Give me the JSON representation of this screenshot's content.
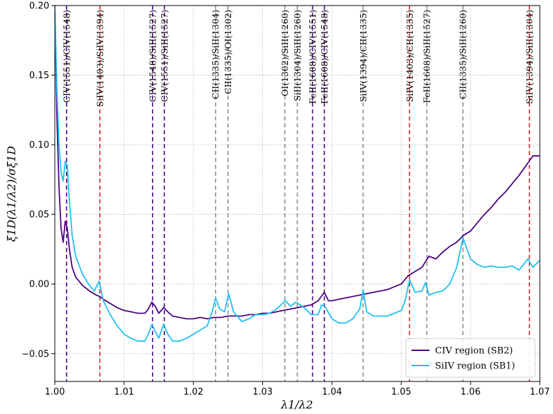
{
  "chart_data": {
    "type": "line",
    "xlabel": "λ1/λ2",
    "ylabel": "ξ1D(λ1/λ2)/σξ1D",
    "xlim": [
      1.0,
      1.07
    ],
    "ylim": [
      -0.07,
      0.2
    ],
    "x_ticks": [
      1.0,
      1.01,
      1.02,
      1.03,
      1.04,
      1.05,
      1.06,
      1.07
    ],
    "x_tick_labels": [
      "1.00",
      "1.01",
      "1.02",
      "1.03",
      "1.04",
      "1.05",
      "1.06",
      "1.07"
    ],
    "y_ticks": [
      -0.05,
      0.0,
      0.05,
      0.1,
      0.15,
      0.2
    ],
    "y_tick_labels": [
      "−0.05",
      "0.00",
      "0.05",
      "0.10",
      "0.15",
      "0.20"
    ],
    "grid": true,
    "legend_position": "bottom-right",
    "series": [
      {
        "name": "CIV region (SB2)",
        "color": "#4b0082",
        "points": [
          [
            1.0,
            0.2
          ],
          [
            1.0003,
            0.12
          ],
          [
            1.0006,
            0.07
          ],
          [
            1.0009,
            0.04
          ],
          [
            1.0012,
            0.03
          ],
          [
            1.0015,
            0.045
          ],
          [
            1.0018,
            0.04
          ],
          [
            1.0021,
            0.025
          ],
          [
            1.0025,
            0.012
          ],
          [
            1.003,
            0.005
          ],
          [
            1.004,
            -0.001
          ],
          [
            1.005,
            -0.005
          ],
          [
            1.006,
            -0.008
          ],
          [
            1.0065,
            -0.009
          ],
          [
            1.007,
            -0.011
          ],
          [
            1.008,
            -0.014
          ],
          [
            1.009,
            -0.017
          ],
          [
            1.01,
            -0.019
          ],
          [
            1.011,
            -0.02
          ],
          [
            1.012,
            -0.021
          ],
          [
            1.013,
            -0.021
          ],
          [
            1.0135,
            -0.018
          ],
          [
            1.014,
            -0.013
          ],
          [
            1.0145,
            -0.016
          ],
          [
            1.015,
            -0.021
          ],
          [
            1.0157,
            -0.017
          ],
          [
            1.0163,
            -0.02
          ],
          [
            1.017,
            -0.023
          ],
          [
            1.018,
            -0.024
          ],
          [
            1.019,
            -0.025
          ],
          [
            1.02,
            -0.025
          ],
          [
            1.021,
            -0.024
          ],
          [
            1.022,
            -0.025
          ],
          [
            1.023,
            -0.024
          ],
          [
            1.024,
            -0.024
          ],
          [
            1.025,
            -0.023
          ],
          [
            1.026,
            -0.023
          ],
          [
            1.027,
            -0.023
          ],
          [
            1.028,
            -0.022
          ],
          [
            1.029,
            -0.022
          ],
          [
            1.03,
            -0.021
          ],
          [
            1.031,
            -0.021
          ],
          [
            1.032,
            -0.02
          ],
          [
            1.033,
            -0.019
          ],
          [
            1.034,
            -0.018
          ],
          [
            1.035,
            -0.017
          ],
          [
            1.036,
            -0.016
          ],
          [
            1.037,
            -0.015
          ],
          [
            1.038,
            -0.012
          ],
          [
            1.0389,
            -0.006
          ],
          [
            1.0395,
            -0.012
          ],
          [
            1.04,
            -0.012
          ],
          [
            1.041,
            -0.011
          ],
          [
            1.042,
            -0.01
          ],
          [
            1.043,
            -0.009
          ],
          [
            1.044,
            -0.008
          ],
          [
            1.045,
            -0.007
          ],
          [
            1.046,
            -0.006
          ],
          [
            1.047,
            -0.005
          ],
          [
            1.048,
            -0.004
          ],
          [
            1.049,
            -0.002
          ],
          [
            1.05,
            0.0
          ],
          [
            1.051,
            0.006
          ],
          [
            1.052,
            0.009
          ],
          [
            1.053,
            0.012
          ],
          [
            1.054,
            0.02
          ],
          [
            1.055,
            0.018
          ],
          [
            1.056,
            0.023
          ],
          [
            1.057,
            0.027
          ],
          [
            1.058,
            0.03
          ],
          [
            1.059,
            0.035
          ],
          [
            1.06,
            0.038
          ],
          [
            1.061,
            0.044
          ],
          [
            1.062,
            0.05
          ],
          [
            1.063,
            0.055
          ],
          [
            1.064,
            0.061
          ],
          [
            1.065,
            0.066
          ],
          [
            1.066,
            0.072
          ],
          [
            1.067,
            0.078
          ],
          [
            1.068,
            0.085
          ],
          [
            1.069,
            0.092
          ],
          [
            1.07,
            0.092
          ]
        ]
      },
      {
        "name": "SiIV region (SB1)",
        "color": "#1ec0f0",
        "points": [
          [
            1.0,
            0.2
          ],
          [
            1.0003,
            0.14
          ],
          [
            1.0006,
            0.1
          ],
          [
            1.0009,
            0.08
          ],
          [
            1.0012,
            0.074
          ],
          [
            1.0015,
            0.088
          ],
          [
            1.0018,
            0.085
          ],
          [
            1.0021,
            0.06
          ],
          [
            1.0025,
            0.035
          ],
          [
            1.003,
            0.02
          ],
          [
            1.004,
            0.007
          ],
          [
            1.005,
            -0.001
          ],
          [
            1.0057,
            -0.005
          ],
          [
            1.0064,
            0.002
          ],
          [
            1.007,
            -0.012
          ],
          [
            1.008,
            -0.022
          ],
          [
            1.009,
            -0.03
          ],
          [
            1.01,
            -0.036
          ],
          [
            1.011,
            -0.039
          ],
          [
            1.012,
            -0.041
          ],
          [
            1.013,
            -0.041
          ],
          [
            1.0135,
            -0.036
          ],
          [
            1.014,
            -0.029
          ],
          [
            1.0145,
            -0.034
          ],
          [
            1.015,
            -0.039
          ],
          [
            1.0157,
            -0.029
          ],
          [
            1.0163,
            -0.036
          ],
          [
            1.017,
            -0.041
          ],
          [
            1.018,
            -0.041
          ],
          [
            1.019,
            -0.039
          ],
          [
            1.02,
            -0.036
          ],
          [
            1.021,
            -0.033
          ],
          [
            1.022,
            -0.03
          ],
          [
            1.0227,
            -0.02
          ],
          [
            1.0232,
            -0.01
          ],
          [
            1.0238,
            -0.018
          ],
          [
            1.0245,
            -0.02
          ],
          [
            1.0251,
            -0.007
          ],
          [
            1.0258,
            -0.02
          ],
          [
            1.027,
            -0.027
          ],
          [
            1.028,
            -0.025
          ],
          [
            1.029,
            -0.022
          ],
          [
            1.03,
            -0.022
          ],
          [
            1.031,
            -0.021
          ],
          [
            1.032,
            -0.018
          ],
          [
            1.0333,
            -0.012
          ],
          [
            1.034,
            -0.016
          ],
          [
            1.0348,
            -0.013
          ],
          [
            1.036,
            -0.017
          ],
          [
            1.037,
            -0.022
          ],
          [
            1.038,
            -0.022
          ],
          [
            1.0385,
            -0.015
          ],
          [
            1.039,
            -0.016
          ],
          [
            1.04,
            -0.025
          ],
          [
            1.041,
            -0.028
          ],
          [
            1.042,
            -0.028
          ],
          [
            1.043,
            -0.025
          ],
          [
            1.044,
            -0.018
          ],
          [
            1.0445,
            -0.004
          ],
          [
            1.045,
            -0.02
          ],
          [
            1.046,
            -0.023
          ],
          [
            1.047,
            -0.023
          ],
          [
            1.048,
            -0.023
          ],
          [
            1.049,
            -0.021
          ],
          [
            1.05,
            -0.019
          ],
          [
            1.0505,
            -0.013
          ],
          [
            1.0512,
            0.003
          ],
          [
            1.052,
            -0.006
          ],
          [
            1.053,
            -0.005
          ],
          [
            1.0535,
            0.001
          ],
          [
            1.054,
            -0.008
          ],
          [
            1.055,
            -0.006
          ],
          [
            1.056,
            -0.005
          ],
          [
            1.057,
            0.0
          ],
          [
            1.058,
            0.012
          ],
          [
            1.0589,
            0.033
          ],
          [
            1.0595,
            0.025
          ],
          [
            1.06,
            0.018
          ],
          [
            1.061,
            0.014
          ],
          [
            1.062,
            0.012
          ],
          [
            1.063,
            0.013
          ],
          [
            1.064,
            0.012
          ],
          [
            1.065,
            0.012
          ],
          [
            1.066,
            0.013
          ],
          [
            1.067,
            0.01
          ],
          [
            1.0683,
            0.018
          ],
          [
            1.069,
            0.012
          ],
          [
            1.07,
            0.017
          ]
        ]
      }
    ],
    "annotations": [
      {
        "x": 1.0017,
        "label": "CIV(1551)/CIV(1548)",
        "color": "#4b0082"
      },
      {
        "x": 1.0065,
        "label": "SiIV(1403)/SiIV(1394)",
        "color": "#d62728"
      },
      {
        "x": 1.0141,
        "label": "CIV(1548)/SiII(1527)",
        "color": "#4b0082"
      },
      {
        "x": 1.0158,
        "label": "CIV(1551)/SiII(1527)",
        "color": "#4b0082"
      },
      {
        "x": 1.0232,
        "label": "CII(1335)/SiII(1304)",
        "color": "#8c8c8c"
      },
      {
        "x": 1.025,
        "label": "CII(1335)/OI(1302)",
        "color": "#8c8c8c"
      },
      {
        "x": 1.0332,
        "label": "OI(1302)/SiII(1260)",
        "color": "#8c8c8c"
      },
      {
        "x": 1.035,
        "label": "SiII(1304)/SiII(1260)",
        "color": "#8c8c8c"
      },
      {
        "x": 1.0372,
        "label": "FeII(1608)/CIV(1551)",
        "color": "#4b0082"
      },
      {
        "x": 1.0389,
        "label": "FeII(1608)/CIV(1548)",
        "color": "#4b0082"
      },
      {
        "x": 1.0445,
        "label": "SiIV(1394)/CII(1335)",
        "color": "#8c8c8c"
      },
      {
        "x": 1.0512,
        "label": "SiIV(1403)/CII(1335)",
        "color": "#d62728"
      },
      {
        "x": 1.0537,
        "label": "FeII(1608)/SiII(1527)",
        "color": "#8c8c8c"
      },
      {
        "x": 1.0589,
        "label": "CII(1335)/SiII(1260)",
        "color": "#8c8c8c"
      },
      {
        "x": 1.0685,
        "label": "SiIV(1394)/SiII(1304)",
        "color": "#d62728"
      }
    ]
  }
}
